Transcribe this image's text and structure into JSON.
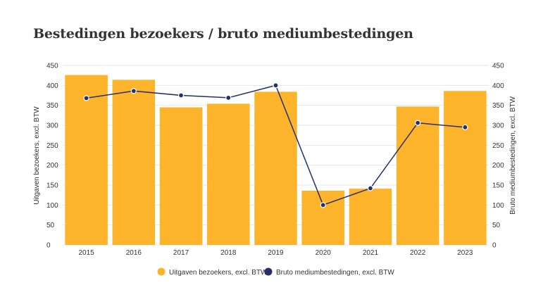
{
  "chart_data": {
    "type": "bar",
    "title": "Bestedingen bezoekers / bruto mediumbestedingen",
    "categories": [
      "2015",
      "2016",
      "2017",
      "2018",
      "2019",
      "2020",
      "2021",
      "2022",
      "2023"
    ],
    "series": [
      {
        "name": "Uitgaven bezoekers, excl. BTW",
        "type": "bar",
        "axis": "left",
        "color": "#FDB32A",
        "values": [
          426,
          414,
          345,
          354,
          384,
          136,
          141,
          347,
          386
        ]
      },
      {
        "name": "Bruto mediumbestedingen, excl. BTW",
        "type": "line",
        "axis": "right",
        "color": "#24306B",
        "values": [
          368,
          386,
          375,
          369,
          400,
          100,
          142,
          306,
          295
        ]
      }
    ],
    "ylabel_left": "Uitgaven bezoekers, excl. BTW",
    "ylabel_right": "Bruto mediumbestedingen, excl. BTW",
    "ylim_left": [
      0,
      450
    ],
    "ylim_right": [
      0,
      450
    ],
    "yticks": [
      "0",
      "50",
      "100",
      "150",
      "200",
      "250",
      "300",
      "350",
      "400",
      "450"
    ],
    "grid": true,
    "legend_position": "bottom"
  }
}
